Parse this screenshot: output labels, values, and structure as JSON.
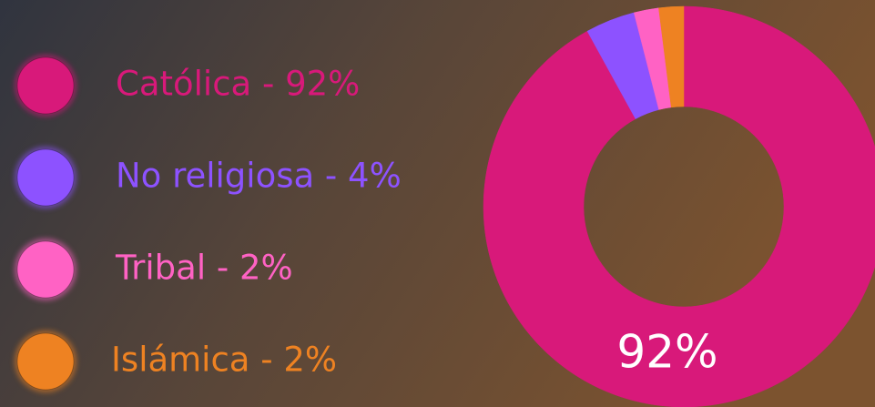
{
  "chart_data": {
    "type": "pie",
    "donut": true,
    "categories": [
      "Católica - 92%",
      "No religiosa - 4%",
      "Tribal - 2%",
      "Islámica - 2%"
    ],
    "values": [
      92,
      4,
      2,
      2
    ],
    "colors": [
      "#d8197a",
      "#8d52ff",
      "#ff62c4",
      "#ee8222"
    ],
    "center_label": "92%"
  }
}
